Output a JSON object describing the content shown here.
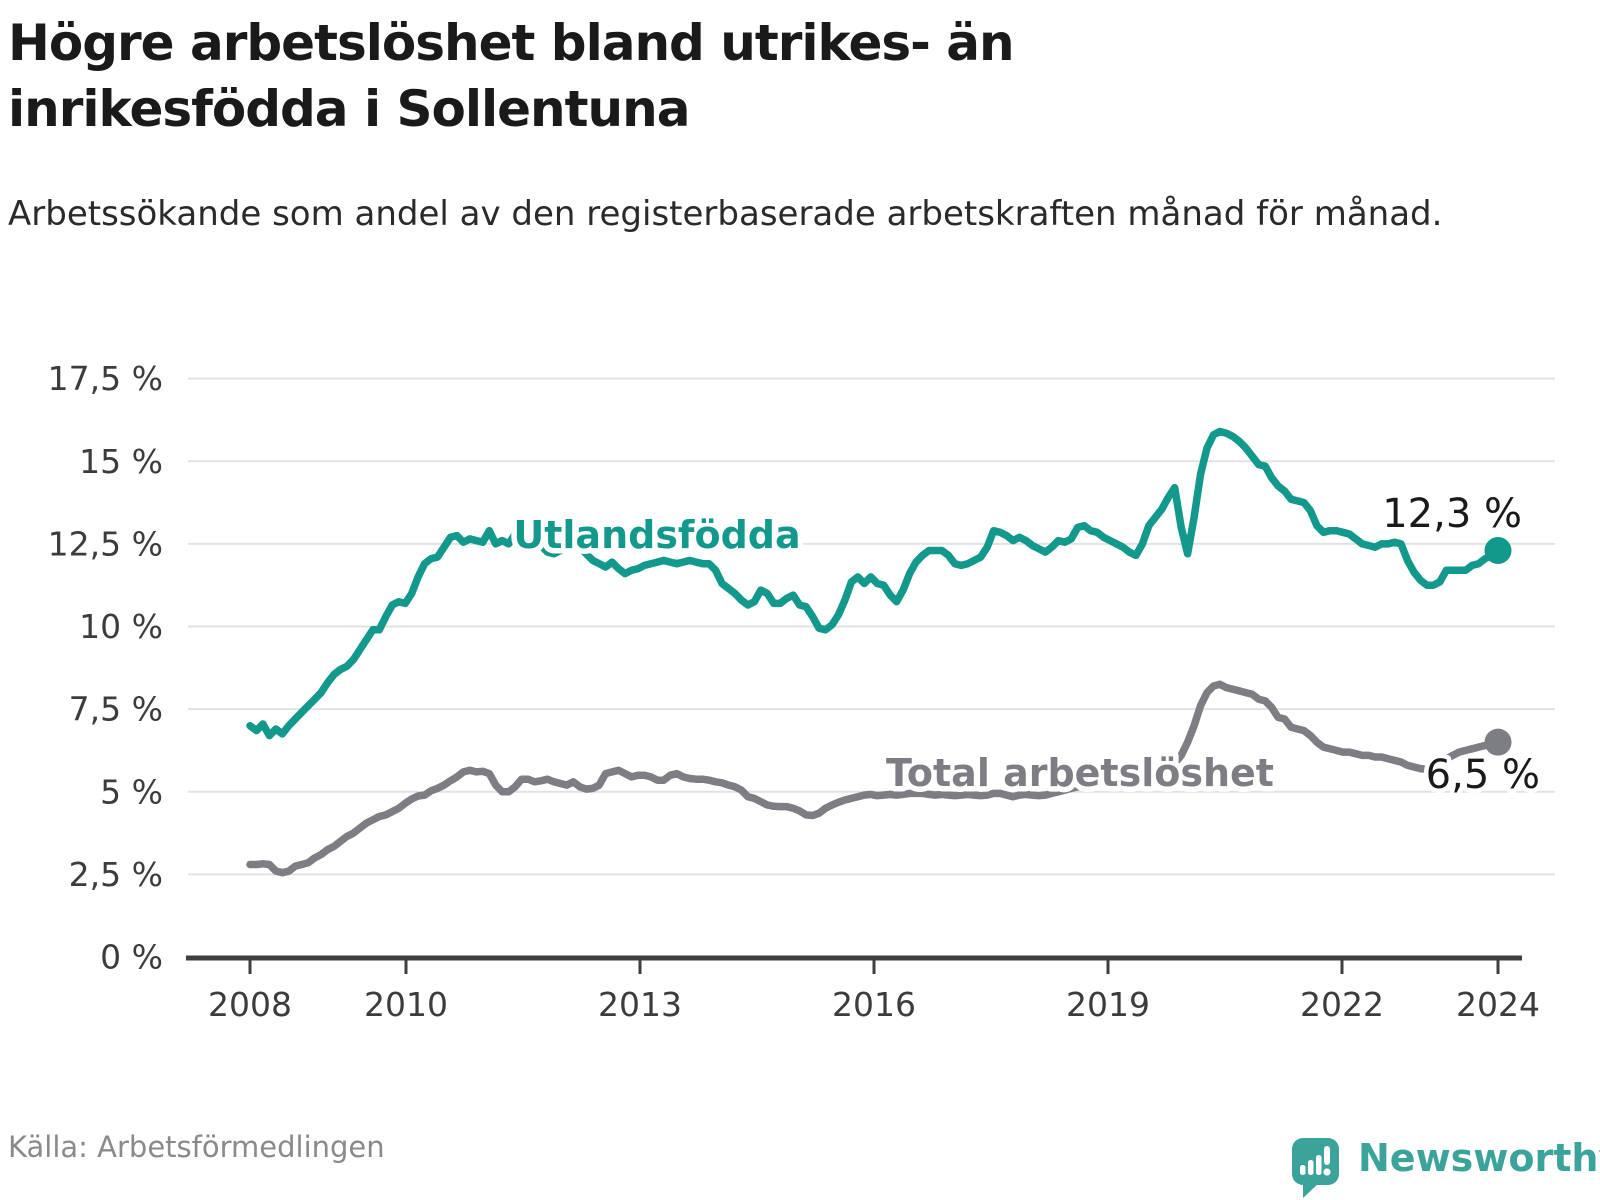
{
  "header": {
    "title": "Högre arbetslöshet bland utrikes- än inrikesfödda i Sollentuna",
    "subtitle": "Arbetssökande som andel av den registerbaserade arbetskraften månad för månad."
  },
  "footer": {
    "source": "Källa: Arbetsförmedlingen",
    "brand": "Newsworthy",
    "brand_color": "#3ba39a"
  },
  "chart_data": {
    "type": "line",
    "title": "Högre arbetslöshet bland utrikes- än inrikesfödda i Sollentuna",
    "subtitle": "Arbetssökande som andel av den registerbaserade arbetskraften månad för månad.",
    "xlabel": "",
    "ylabel": "",
    "x_start_year": 2008,
    "x_step": "1 month",
    "x_tick_years": [
      2008,
      2010,
      2013,
      2016,
      2019,
      2022,
      2024
    ],
    "x_tick_labels": [
      "2008",
      "2010",
      "2013",
      "2016",
      "2019",
      "2022",
      "2024"
    ],
    "y_ticks": [
      0,
      2.5,
      5,
      7.5,
      10,
      12.5,
      15,
      17.5
    ],
    "y_tick_labels": [
      "0 %",
      "2,5 %",
      "5 %",
      "7,5 %",
      "10 %",
      "12,5 %",
      "15 %",
      "17,5 %"
    ],
    "ylim": [
      0,
      17.5
    ],
    "grid": "horizontal",
    "legend_position": "inline-labels",
    "series": [
      {
        "name": "Utlandsfödda",
        "color": "#13998c",
        "end_label": "12,3 %",
        "end_value": 12.3,
        "values": [
          7.0,
          6.85,
          7.05,
          6.7,
          6.9,
          6.75,
          7.0,
          7.2,
          7.4,
          7.6,
          7.8,
          8.0,
          8.3,
          8.55,
          8.7,
          8.8,
          9.0,
          9.3,
          9.6,
          9.9,
          9.9,
          10.3,
          10.65,
          10.75,
          10.7,
          11.0,
          11.5,
          11.9,
          12.05,
          12.1,
          12.4,
          12.7,
          12.75,
          12.55,
          12.65,
          12.6,
          12.55,
          12.9,
          12.5,
          12.6,
          12.5,
          12.8,
          12.75,
          12.7,
          12.75,
          12.45,
          12.25,
          12.2,
          12.3,
          12.5,
          12.55,
          12.4,
          12.2,
          12.0,
          11.9,
          11.8,
          11.95,
          11.75,
          11.6,
          11.7,
          11.75,
          11.85,
          11.9,
          11.95,
          12.0,
          11.95,
          11.9,
          11.95,
          12.0,
          11.95,
          11.9,
          11.9,
          11.7,
          11.3,
          11.15,
          11.0,
          10.8,
          10.65,
          10.75,
          11.1,
          11.0,
          10.7,
          10.7,
          10.85,
          10.95,
          10.65,
          10.6,
          10.3,
          9.95,
          9.9,
          10.05,
          10.35,
          10.8,
          11.35,
          11.5,
          11.3,
          11.5,
          11.3,
          11.25,
          10.95,
          10.75,
          11.1,
          11.6,
          11.95,
          12.15,
          12.3,
          12.3,
          12.3,
          12.15,
          11.9,
          11.85,
          11.9,
          12.0,
          12.1,
          12.4,
          12.9,
          12.85,
          12.75,
          12.6,
          12.7,
          12.6,
          12.45,
          12.35,
          12.25,
          12.4,
          12.6,
          12.55,
          12.65,
          13.0,
          13.05,
          12.9,
          12.85,
          12.7,
          12.6,
          12.5,
          12.4,
          12.25,
          12.15,
          12.5,
          13.05,
          13.3,
          13.55,
          13.9,
          14.2,
          13.0,
          12.2,
          13.3,
          14.6,
          15.4,
          15.8,
          15.9,
          15.85,
          15.75,
          15.6,
          15.4,
          15.15,
          14.9,
          14.85,
          14.5,
          14.25,
          14.1,
          13.85,
          13.8,
          13.75,
          13.5,
          13.05,
          12.85,
          12.9,
          12.9,
          12.85,
          12.8,
          12.65,
          12.5,
          12.45,
          12.4,
          12.5,
          12.5,
          12.55,
          12.5,
          12.0,
          11.65,
          11.4,
          11.25,
          11.25,
          11.35,
          11.7,
          11.7,
          11.7,
          11.7,
          11.85,
          11.9,
          12.05,
          12.15,
          12.3
        ]
      },
      {
        "name": "Total arbetslöshet",
        "color": "#7d7d84",
        "end_label": "6,5 %",
        "end_value": 6.5,
        "values": [
          2.8,
          2.8,
          2.82,
          2.8,
          2.6,
          2.55,
          2.6,
          2.75,
          2.8,
          2.85,
          3.0,
          3.1,
          3.25,
          3.35,
          3.5,
          3.65,
          3.75,
          3.9,
          4.05,
          4.15,
          4.25,
          4.3,
          4.4,
          4.5,
          4.65,
          4.78,
          4.87,
          4.9,
          5.03,
          5.1,
          5.2,
          5.33,
          5.45,
          5.6,
          5.65,
          5.6,
          5.62,
          5.55,
          5.2,
          5.0,
          5.0,
          5.15,
          5.38,
          5.38,
          5.3,
          5.33,
          5.38,
          5.3,
          5.25,
          5.2,
          5.3,
          5.15,
          5.08,
          5.1,
          5.2,
          5.55,
          5.6,
          5.65,
          5.55,
          5.45,
          5.5,
          5.5,
          5.45,
          5.35,
          5.35,
          5.5,
          5.55,
          5.45,
          5.4,
          5.38,
          5.38,
          5.35,
          5.3,
          5.27,
          5.2,
          5.15,
          5.05,
          4.85,
          4.8,
          4.7,
          4.6,
          4.56,
          4.55,
          4.55,
          4.5,
          4.42,
          4.3,
          4.28,
          4.35,
          4.5,
          4.6,
          4.68,
          4.75,
          4.8,
          4.85,
          4.9,
          4.92,
          4.88,
          4.9,
          4.92,
          4.9,
          4.92,
          4.95,
          4.95,
          4.95,
          4.92,
          4.9,
          4.92,
          4.9,
          4.88,
          4.9,
          4.92,
          4.9,
          4.88,
          4.9,
          4.95,
          4.95,
          4.9,
          4.85,
          4.9,
          4.92,
          4.9,
          4.88,
          4.9,
          4.95,
          5.0,
          5.05,
          5.1,
          5.15,
          5.2,
          5.15,
          5.2,
          5.25,
          5.3,
          5.35,
          5.4,
          5.45,
          5.5,
          5.55,
          5.6,
          5.65,
          5.6,
          5.7,
          5.85,
          6.1,
          6.5,
          7.0,
          7.6,
          8.0,
          8.2,
          8.25,
          8.15,
          8.1,
          8.05,
          8.0,
          7.95,
          7.8,
          7.75,
          7.55,
          7.25,
          7.2,
          6.95,
          6.9,
          6.85,
          6.7,
          6.5,
          6.35,
          6.3,
          6.25,
          6.2,
          6.2,
          6.15,
          6.1,
          6.1,
          6.05,
          6.05,
          6.0,
          5.95,
          5.9,
          5.8,
          5.75,
          5.7,
          5.68,
          5.65,
          5.85,
          6.0,
          6.1,
          6.2,
          6.25,
          6.3,
          6.35,
          6.4,
          6.43,
          6.5
        ]
      }
    ]
  }
}
